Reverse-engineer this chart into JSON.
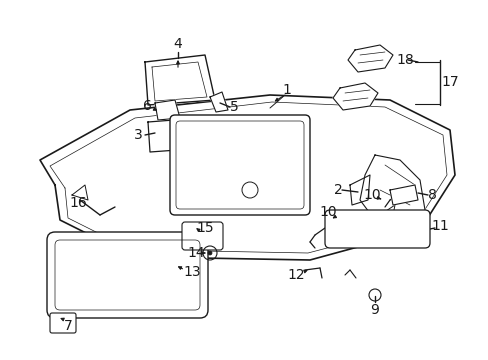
{
  "bg_color": "#ffffff",
  "line_color": "#1a1a1a",
  "fig_width": 4.89,
  "fig_height": 3.6,
  "dpi": 100,
  "font_size": 9,
  "bold_font_size": 10
}
